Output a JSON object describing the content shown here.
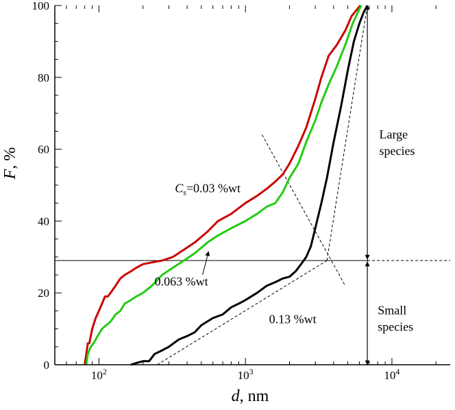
{
  "chart_data": {
    "type": "line",
    "xscale": "log",
    "xlim": [
      50,
      25000
    ],
    "ylim": [
      0,
      100
    ],
    "xlabel": {
      "italic": "d",
      "rest": ", nm"
    },
    "ylabel": {
      "italic": "F",
      "rest": ", %"
    },
    "xticks": [
      {
        "value": 100,
        "base": "10",
        "exp": "2"
      },
      {
        "value": 1000,
        "base": "10",
        "exp": "3"
      },
      {
        "value": 10000,
        "base": "10",
        "exp": "4"
      }
    ],
    "yticks": [
      {
        "value": 0,
        "label": "0"
      },
      {
        "value": 20,
        "label": "20"
      },
      {
        "value": 40,
        "label": "40"
      },
      {
        "value": 60,
        "label": "60"
      },
      {
        "value": 80,
        "label": "80"
      },
      {
        "value": 100,
        "label": "100"
      }
    ],
    "series": [
      {
        "name": "Cs=0.03 %wt",
        "color": "#cc0000",
        "x": [
          80,
          82,
          84,
          86,
          90,
          95,
          100,
          105,
          110,
          115,
          120,
          130,
          140,
          150,
          165,
          180,
          200,
          230,
          270,
          320,
          380,
          450,
          550,
          650,
          800,
          1000,
          1200,
          1400,
          1600,
          1800,
          2000,
          2300,
          2600,
          3000,
          3300,
          3700,
          4200,
          4800,
          5300,
          5800,
          6100
        ],
        "y": [
          0,
          3,
          6,
          6,
          10,
          13,
          15,
          17,
          19,
          19,
          20,
          22,
          24,
          25,
          26,
          27,
          28,
          28.5,
          29,
          30,
          32,
          34,
          37,
          40,
          42,
          45,
          47,
          49,
          51,
          53,
          56,
          61,
          66,
          74,
          80,
          86,
          89,
          93,
          97,
          99,
          100
        ]
      },
      {
        "name": "0.063 %wt",
        "color": "#22cc11",
        "x": [
          82,
          84,
          88,
          92,
          98,
          105,
          112,
          120,
          130,
          140,
          150,
          165,
          180,
          200,
          230,
          270,
          320,
          380,
          450,
          550,
          650,
          800,
          1000,
          1200,
          1400,
          1600,
          1800,
          2000,
          2300,
          2600,
          3000,
          3300,
          3700,
          4200,
          4800,
          5400,
          6000,
          6200
        ],
        "y": [
          0,
          3,
          5,
          6,
          8,
          10,
          11,
          12,
          14,
          15,
          17,
          18,
          19,
          20,
          22,
          25,
          27,
          29,
          31,
          34,
          36,
          38,
          40,
          42,
          44,
          45,
          48,
          52,
          56,
          62,
          68,
          73,
          78,
          83,
          89,
          95,
          99,
          100
        ]
      },
      {
        "name": "0.13 %wt",
        "color": "#000000",
        "x": [
          165,
          180,
          200,
          220,
          240,
          270,
          300,
          350,
          400,
          450,
          500,
          600,
          700,
          800,
          900,
          1000,
          1200,
          1400,
          1600,
          1800,
          2000,
          2200,
          2400,
          2600,
          2800,
          3000,
          3300,
          3600,
          4000,
          4500,
          5000,
          5500,
          6000,
          6400,
          6700,
          6800
        ],
        "y": [
          0,
          0.5,
          1,
          1,
          3,
          4,
          5,
          7,
          8,
          9,
          11,
          13,
          14,
          16,
          17,
          18,
          20,
          22,
          23,
          24,
          24.5,
          26,
          28,
          30,
          33,
          38,
          45,
          52,
          62,
          72,
          82,
          90,
          95,
          98,
          99.5,
          100
        ]
      }
    ],
    "guides": [
      {
        "name": "horizontal-line-f29",
        "y": 29,
        "x_from": 50,
        "x_to": 6800,
        "style": "solid"
      },
      {
        "name": "horizontal-dashed-f29",
        "y": 29,
        "x_from": 6800,
        "x_to": 25000,
        "style": "dashed"
      },
      {
        "name": "diagonal-dashed-line",
        "points": [
          [
            1300,
            64
          ],
          [
            4800,
            22
          ]
        ],
        "style": "dashed"
      },
      {
        "name": "tangent-small-dashed",
        "points": [
          [
            250,
            0
          ],
          [
            3600,
            29
          ]
        ],
        "style": "dashed"
      },
      {
        "name": "tangent-large-dashed",
        "points": [
          [
            3600,
            29
          ],
          [
            6800,
            100
          ]
        ],
        "style": "dashed"
      },
      {
        "name": "vertical-divider-line",
        "points": [
          [
            6800,
            0
          ],
          [
            6800,
            100
          ]
        ],
        "style": "solid"
      }
    ],
    "annotations": {
      "cs_label": {
        "prefix": "C",
        "sub": "s",
        "rest": "=0.03 %wt",
        "x": 330,
        "y": 48
      },
      "wt063_label": {
        "text": "0.063 %wt",
        "x": 240,
        "y": 22,
        "arrow_to": [
          560,
          31.5
        ]
      },
      "wt013_label": {
        "text": "0.13 %wt",
        "x": 1450,
        "y": 11.5
      },
      "large_species": {
        "line1": "Large",
        "line2": "species",
        "x": 8200,
        "y": 63
      },
      "small_species": {
        "line1": "Small",
        "line2": "species",
        "x": 8000,
        "y": 14
      }
    }
  }
}
